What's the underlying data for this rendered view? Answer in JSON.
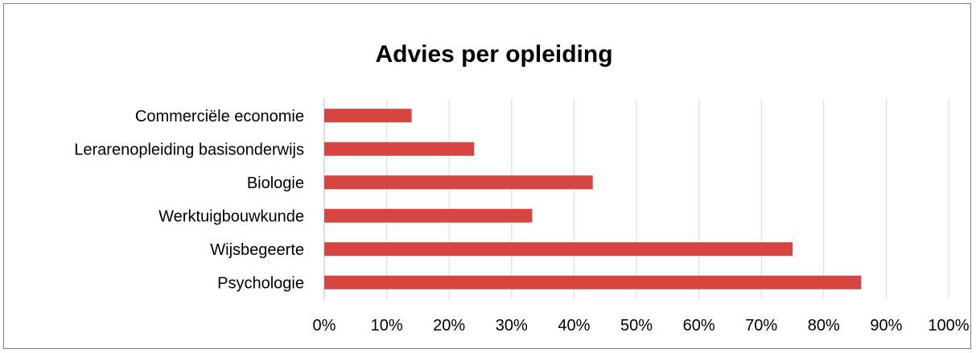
{
  "chart_data": {
    "type": "bar",
    "orientation": "horizontal",
    "title": "Advies per opleiding",
    "categories": [
      "Commerciële economie",
      "Lerarenopleiding basisonderwijs",
      "Biologie",
      "Werktuigbouwkunde",
      "Wijsbegeerte",
      "Psychologie"
    ],
    "values": [
      14,
      24,
      43,
      33.3,
      75,
      86
    ],
    "value_unit": "%",
    "xlim": [
      0,
      100
    ],
    "x_ticks": [
      0,
      10,
      20,
      30,
      40,
      50,
      60,
      70,
      80,
      90,
      100
    ],
    "x_tick_labels": [
      "0%",
      "10%",
      "20%",
      "30%",
      "40%",
      "50%",
      "60%",
      "70%",
      "80%",
      "90%",
      "100%"
    ],
    "grid": true,
    "legend": "none",
    "bar_color": "#d64541",
    "grid_color": "#d9d9d9"
  }
}
